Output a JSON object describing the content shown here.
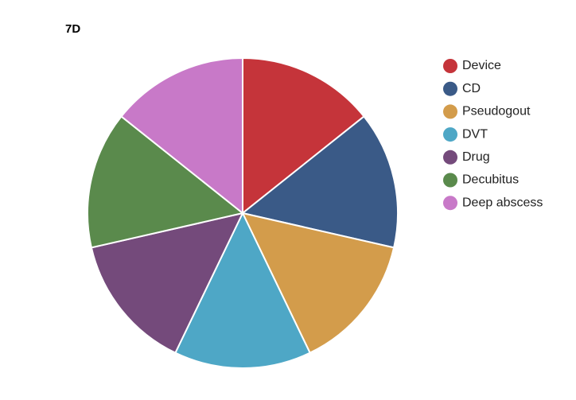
{
  "chart_data": {
    "type": "pie",
    "title": "7D",
    "categories": [
      "Device",
      "CD",
      "Pseudogout",
      "DVT",
      "Drug",
      "Decubitus",
      "Deep abscess"
    ],
    "values": [
      14.3,
      14.3,
      14.3,
      14.3,
      14.3,
      14.3,
      14.3
    ],
    "colors": [
      "#c5343a",
      "#3a5a87",
      "#d39c4b",
      "#4ea7c6",
      "#744a7b",
      "#5a8a4c",
      "#c879c8"
    ],
    "legend": "right"
  }
}
